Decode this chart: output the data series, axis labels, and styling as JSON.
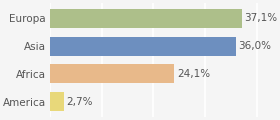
{
  "categories": [
    "America",
    "Africa",
    "Asia",
    "Europa"
  ],
  "values": [
    2.7,
    24.1,
    36.0,
    37.1
  ],
  "labels": [
    "2,7%",
    "24,1%",
    "36,0%",
    "37,1%"
  ],
  "bar_colors": [
    "#e8d87a",
    "#e8b98a",
    "#6d8fbf",
    "#adbf8a"
  ],
  "background_color": "#f5f5f5",
  "xlim": [
    0,
    42
  ],
  "bar_height": 0.68,
  "label_fontsize": 7.5,
  "category_fontsize": 7.5,
  "grid_color": "#ffffff",
  "grid_ticks": [
    0,
    10,
    20,
    30,
    40
  ]
}
